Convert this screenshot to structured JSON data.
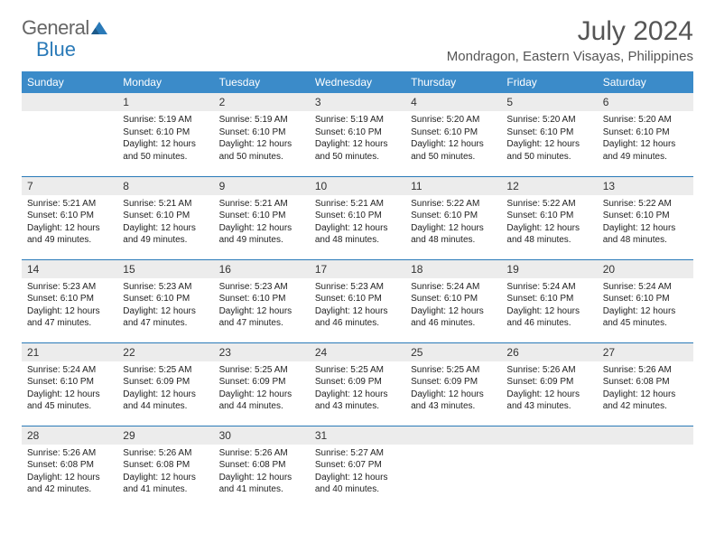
{
  "logo": {
    "text1": "General",
    "text2": "Blue"
  },
  "title": "July 2024",
  "location": "Mondragon, Eastern Visayas, Philippines",
  "colors": {
    "header_bg": "#3b8bc9",
    "header_text": "#ffffff",
    "border": "#2a7ab8",
    "daynum_bg": "#ececec",
    "body_text": "#222222",
    "title_text": "#555555",
    "logo_gray": "#666666",
    "logo_blue": "#2a7ab8"
  },
  "weekdays": [
    "Sunday",
    "Monday",
    "Tuesday",
    "Wednesday",
    "Thursday",
    "Friday",
    "Saturday"
  ],
  "weeks": [
    [
      null,
      {
        "n": "1",
        "sr": "Sunrise: 5:19 AM",
        "ss": "Sunset: 6:10 PM",
        "d1": "Daylight: 12 hours",
        "d2": "and 50 minutes."
      },
      {
        "n": "2",
        "sr": "Sunrise: 5:19 AM",
        "ss": "Sunset: 6:10 PM",
        "d1": "Daylight: 12 hours",
        "d2": "and 50 minutes."
      },
      {
        "n": "3",
        "sr": "Sunrise: 5:19 AM",
        "ss": "Sunset: 6:10 PM",
        "d1": "Daylight: 12 hours",
        "d2": "and 50 minutes."
      },
      {
        "n": "4",
        "sr": "Sunrise: 5:20 AM",
        "ss": "Sunset: 6:10 PM",
        "d1": "Daylight: 12 hours",
        "d2": "and 50 minutes."
      },
      {
        "n": "5",
        "sr": "Sunrise: 5:20 AM",
        "ss": "Sunset: 6:10 PM",
        "d1": "Daylight: 12 hours",
        "d2": "and 50 minutes."
      },
      {
        "n": "6",
        "sr": "Sunrise: 5:20 AM",
        "ss": "Sunset: 6:10 PM",
        "d1": "Daylight: 12 hours",
        "d2": "and 49 minutes."
      }
    ],
    [
      {
        "n": "7",
        "sr": "Sunrise: 5:21 AM",
        "ss": "Sunset: 6:10 PM",
        "d1": "Daylight: 12 hours",
        "d2": "and 49 minutes."
      },
      {
        "n": "8",
        "sr": "Sunrise: 5:21 AM",
        "ss": "Sunset: 6:10 PM",
        "d1": "Daylight: 12 hours",
        "d2": "and 49 minutes."
      },
      {
        "n": "9",
        "sr": "Sunrise: 5:21 AM",
        "ss": "Sunset: 6:10 PM",
        "d1": "Daylight: 12 hours",
        "d2": "and 49 minutes."
      },
      {
        "n": "10",
        "sr": "Sunrise: 5:21 AM",
        "ss": "Sunset: 6:10 PM",
        "d1": "Daylight: 12 hours",
        "d2": "and 48 minutes."
      },
      {
        "n": "11",
        "sr": "Sunrise: 5:22 AM",
        "ss": "Sunset: 6:10 PM",
        "d1": "Daylight: 12 hours",
        "d2": "and 48 minutes."
      },
      {
        "n": "12",
        "sr": "Sunrise: 5:22 AM",
        "ss": "Sunset: 6:10 PM",
        "d1": "Daylight: 12 hours",
        "d2": "and 48 minutes."
      },
      {
        "n": "13",
        "sr": "Sunrise: 5:22 AM",
        "ss": "Sunset: 6:10 PM",
        "d1": "Daylight: 12 hours",
        "d2": "and 48 minutes."
      }
    ],
    [
      {
        "n": "14",
        "sr": "Sunrise: 5:23 AM",
        "ss": "Sunset: 6:10 PM",
        "d1": "Daylight: 12 hours",
        "d2": "and 47 minutes."
      },
      {
        "n": "15",
        "sr": "Sunrise: 5:23 AM",
        "ss": "Sunset: 6:10 PM",
        "d1": "Daylight: 12 hours",
        "d2": "and 47 minutes."
      },
      {
        "n": "16",
        "sr": "Sunrise: 5:23 AM",
        "ss": "Sunset: 6:10 PM",
        "d1": "Daylight: 12 hours",
        "d2": "and 47 minutes."
      },
      {
        "n": "17",
        "sr": "Sunrise: 5:23 AM",
        "ss": "Sunset: 6:10 PM",
        "d1": "Daylight: 12 hours",
        "d2": "and 46 minutes."
      },
      {
        "n": "18",
        "sr": "Sunrise: 5:24 AM",
        "ss": "Sunset: 6:10 PM",
        "d1": "Daylight: 12 hours",
        "d2": "and 46 minutes."
      },
      {
        "n": "19",
        "sr": "Sunrise: 5:24 AM",
        "ss": "Sunset: 6:10 PM",
        "d1": "Daylight: 12 hours",
        "d2": "and 46 minutes."
      },
      {
        "n": "20",
        "sr": "Sunrise: 5:24 AM",
        "ss": "Sunset: 6:10 PM",
        "d1": "Daylight: 12 hours",
        "d2": "and 45 minutes."
      }
    ],
    [
      {
        "n": "21",
        "sr": "Sunrise: 5:24 AM",
        "ss": "Sunset: 6:10 PM",
        "d1": "Daylight: 12 hours",
        "d2": "and 45 minutes."
      },
      {
        "n": "22",
        "sr": "Sunrise: 5:25 AM",
        "ss": "Sunset: 6:09 PM",
        "d1": "Daylight: 12 hours",
        "d2": "and 44 minutes."
      },
      {
        "n": "23",
        "sr": "Sunrise: 5:25 AM",
        "ss": "Sunset: 6:09 PM",
        "d1": "Daylight: 12 hours",
        "d2": "and 44 minutes."
      },
      {
        "n": "24",
        "sr": "Sunrise: 5:25 AM",
        "ss": "Sunset: 6:09 PM",
        "d1": "Daylight: 12 hours",
        "d2": "and 43 minutes."
      },
      {
        "n": "25",
        "sr": "Sunrise: 5:25 AM",
        "ss": "Sunset: 6:09 PM",
        "d1": "Daylight: 12 hours",
        "d2": "and 43 minutes."
      },
      {
        "n": "26",
        "sr": "Sunrise: 5:26 AM",
        "ss": "Sunset: 6:09 PM",
        "d1": "Daylight: 12 hours",
        "d2": "and 43 minutes."
      },
      {
        "n": "27",
        "sr": "Sunrise: 5:26 AM",
        "ss": "Sunset: 6:08 PM",
        "d1": "Daylight: 12 hours",
        "d2": "and 42 minutes."
      }
    ],
    [
      {
        "n": "28",
        "sr": "Sunrise: 5:26 AM",
        "ss": "Sunset: 6:08 PM",
        "d1": "Daylight: 12 hours",
        "d2": "and 42 minutes."
      },
      {
        "n": "29",
        "sr": "Sunrise: 5:26 AM",
        "ss": "Sunset: 6:08 PM",
        "d1": "Daylight: 12 hours",
        "d2": "and 41 minutes."
      },
      {
        "n": "30",
        "sr": "Sunrise: 5:26 AM",
        "ss": "Sunset: 6:08 PM",
        "d1": "Daylight: 12 hours",
        "d2": "and 41 minutes."
      },
      {
        "n": "31",
        "sr": "Sunrise: 5:27 AM",
        "ss": "Sunset: 6:07 PM",
        "d1": "Daylight: 12 hours",
        "d2": "and 40 minutes."
      },
      null,
      null,
      null
    ]
  ]
}
